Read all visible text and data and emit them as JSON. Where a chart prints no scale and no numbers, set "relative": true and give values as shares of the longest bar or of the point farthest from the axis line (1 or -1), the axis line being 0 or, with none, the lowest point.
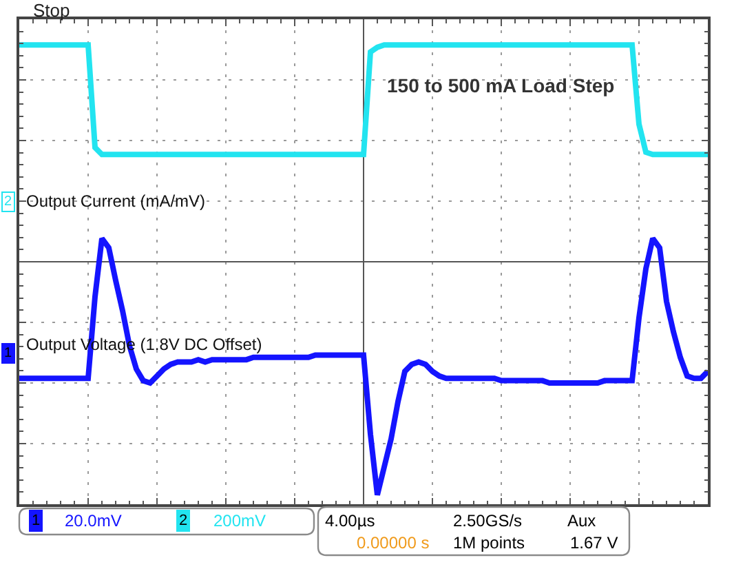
{
  "chart_data": {
    "type": "line",
    "relative": true,
    "grid": true,
    "categories": [
      null,
      null,
      null,
      null,
      null,
      null,
      null,
      null,
      null,
      null,
      null,
      null,
      null,
      null,
      null,
      null,
      null,
      null,
      null,
      null,
      null,
      null,
      null,
      null,
      null,
      null,
      null,
      null,
      null,
      null,
      null,
      null,
      null,
      null,
      null,
      null,
      null,
      null,
      null,
      null,
      null,
      null,
      null,
      null,
      null,
      null,
      null,
      null,
      null,
      null,
      null,
      null,
      null,
      null,
      null,
      null,
      null,
      null,
      null,
      null,
      null,
      null,
      null,
      null,
      null,
      null,
      null,
      null,
      null,
      null,
      null,
      null,
      null,
      null,
      null,
      null,
      null,
      null,
      null,
      null,
      null,
      null,
      null,
      null,
      null,
      null,
      null,
      null,
      null,
      null,
      null,
      null,
      null,
      null,
      null,
      null,
      null,
      null,
      null,
      null,
      null
    ],
    "series": [
      {
        "name": "Output Current (mA/mV)",
        "color": "#22e4f0",
        "values": [
          0.93,
          0.93,
          0.93,
          0.93,
          0.93,
          0.93,
          0.93,
          0.93,
          0.93,
          0.93,
          0.93,
          0.49,
          0.46,
          0.46,
          0.46,
          0.46,
          0.46,
          0.46,
          0.46,
          0.46,
          0.46,
          0.46,
          0.46,
          0.46,
          0.46,
          0.46,
          0.46,
          0.46,
          0.46,
          0.46,
          0.46,
          0.46,
          0.46,
          0.46,
          0.46,
          0.46,
          0.46,
          0.46,
          0.46,
          0.46,
          0.46,
          0.46,
          0.46,
          0.46,
          0.46,
          0.46,
          0.46,
          0.46,
          0.46,
          0.46,
          0.46,
          0.9,
          0.92,
          0.93,
          0.93,
          0.93,
          0.93,
          0.93,
          0.93,
          0.93,
          0.93,
          0.93,
          0.93,
          0.93,
          0.93,
          0.93,
          0.93,
          0.93,
          0.93,
          0.93,
          0.93,
          0.93,
          0.93,
          0.93,
          0.93,
          0.93,
          0.93,
          0.93,
          0.93,
          0.93,
          0.93,
          0.93,
          0.93,
          0.93,
          0.93,
          0.93,
          0.93,
          0.93,
          0.93,
          0.93,
          0.59,
          0.47,
          0.46,
          0.46,
          0.46,
          0.46,
          0.46,
          0.46,
          0.46,
          0.46,
          0.46
        ]
      },
      {
        "name": "Output Voltage (1.8V DC Offset)",
        "color": "#1414ff",
        "values": [
          -0.5,
          -0.5,
          -0.5,
          -0.5,
          -0.5,
          -0.5,
          -0.5,
          -0.5,
          -0.5,
          -0.5,
          -0.5,
          -0.15,
          0.1,
          0.06,
          -0.08,
          -0.21,
          -0.36,
          -0.46,
          -0.51,
          -0.52,
          -0.49,
          -0.46,
          -0.44,
          -0.43,
          -0.43,
          -0.43,
          -0.42,
          -0.43,
          -0.42,
          -0.42,
          -0.42,
          -0.42,
          -0.42,
          -0.42,
          -0.41,
          -0.41,
          -0.41,
          -0.41,
          -0.41,
          -0.41,
          -0.41,
          -0.41,
          -0.41,
          -0.4,
          -0.4,
          -0.4,
          -0.4,
          -0.4,
          -0.4,
          -0.4,
          -0.4,
          -0.74,
          -1.0,
          -0.88,
          -0.76,
          -0.6,
          -0.47,
          -0.44,
          -0.43,
          -0.44,
          -0.47,
          -0.49,
          -0.5,
          -0.5,
          -0.5,
          -0.5,
          -0.5,
          -0.5,
          -0.5,
          -0.5,
          -0.51,
          -0.51,
          -0.51,
          -0.51,
          -0.51,
          -0.51,
          -0.51,
          -0.52,
          -0.52,
          -0.52,
          -0.52,
          -0.52,
          -0.52,
          -0.52,
          -0.52,
          -0.51,
          -0.51,
          -0.51,
          -0.51,
          -0.51,
          -0.24,
          -0.03,
          0.1,
          0.06,
          -0.17,
          -0.3,
          -0.41,
          -0.49,
          -0.5,
          -0.5,
          -0.47
        ]
      }
    ],
    "annotations": [
      "Stop",
      "150 to 500 mA Load Step",
      "2",
      "1",
      "1",
      "20.0mV",
      "2",
      "200mV",
      "4.00µs",
      "2.50GS/s",
      "Aux",
      "0.00000 s",
      "1M points",
      "1.67 V"
    ]
  }
}
